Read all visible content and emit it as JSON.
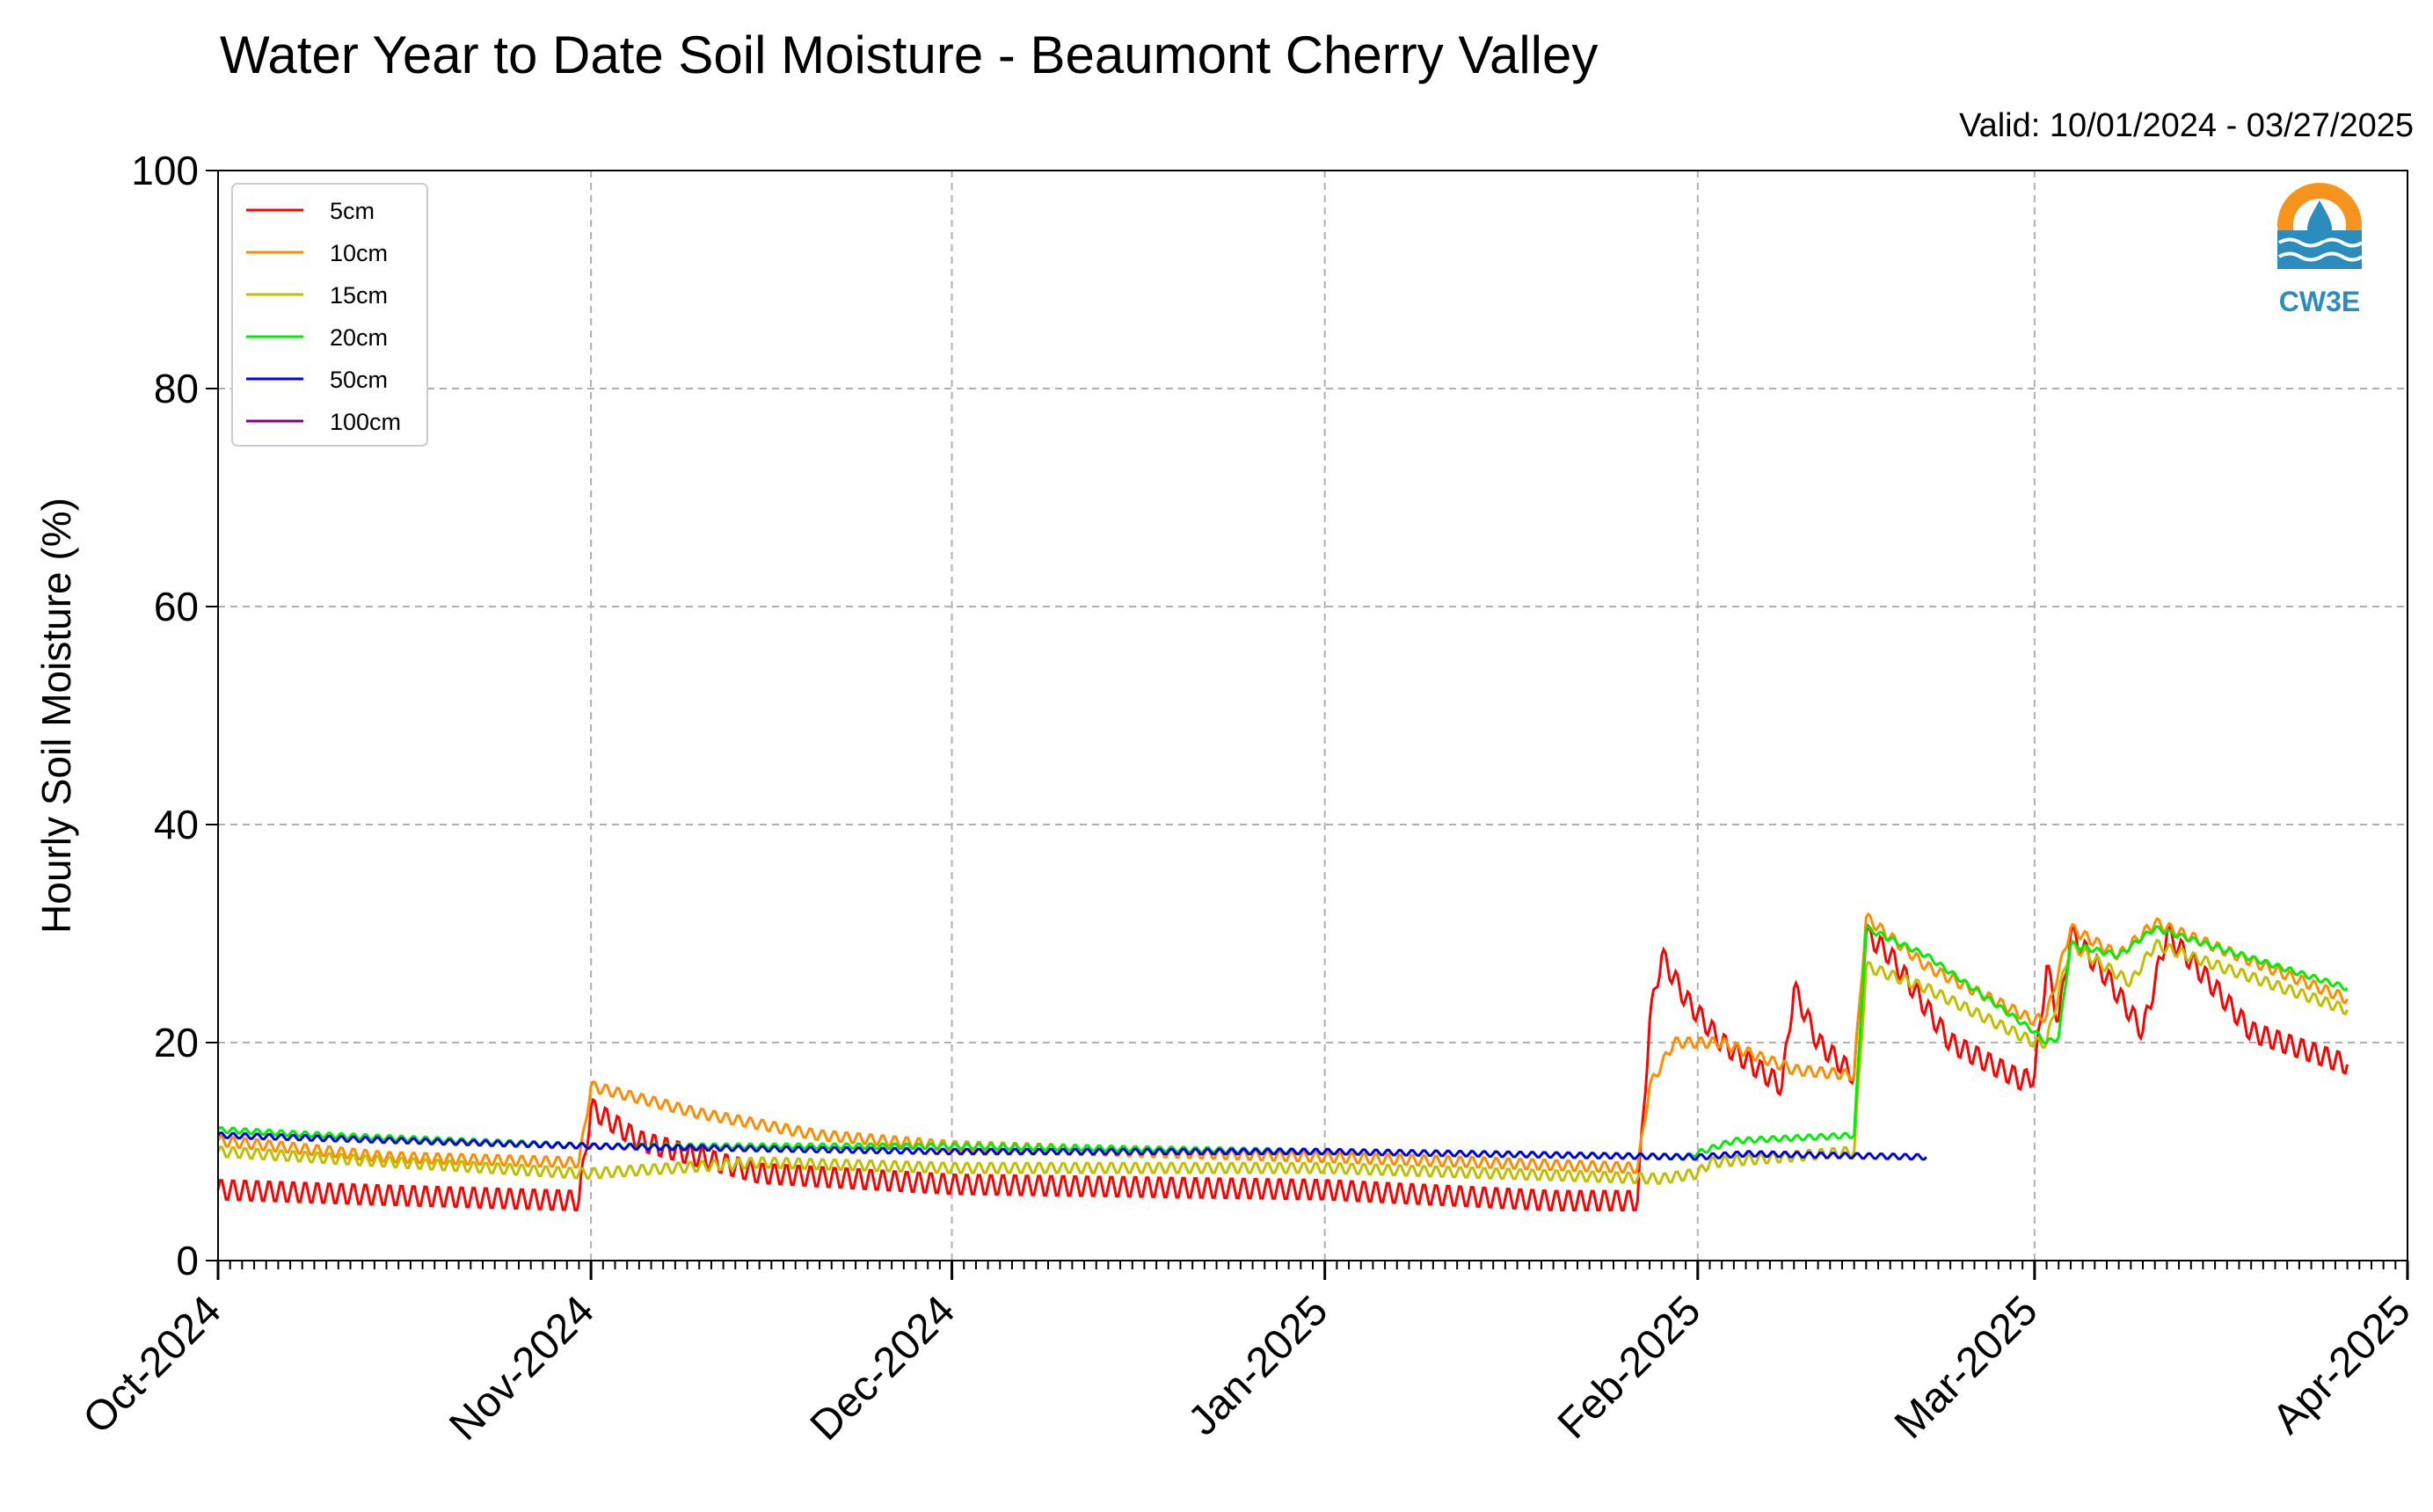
{
  "chart_data": {
    "type": "line",
    "title": "Water Year to Date Soil Moisture - Beaumont Cherry Valley",
    "subtitle": "Valid: 10/01/2024 - 03/27/2025",
    "xlabel": "",
    "ylabel": "Hourly Soil Moisture (%)",
    "ylim": [
      0,
      100
    ],
    "yticks": [
      0,
      20,
      40,
      60,
      80,
      100
    ],
    "xlim": [
      "2024-10-01",
      "2025-04-01"
    ],
    "xtick_labels": [
      "Oct-2024",
      "Nov-2024",
      "Dec-2024",
      "Jan-2025",
      "Feb-2025",
      "Mar-2025",
      "Apr-2025"
    ],
    "grid": true,
    "legend_position": "top-left",
    "logo_text": "CW3E",
    "series": [
      {
        "name": "5cm",
        "color": "#ff0000",
        "points": [
          [
            "2024-10-01",
            6.5
          ],
          [
            "2024-10-15",
            6.0
          ],
          [
            "2024-10-31",
            5.5
          ],
          [
            "2024-11-01",
            14.0
          ],
          [
            "2024-11-05",
            11.0
          ],
          [
            "2024-11-15",
            8.0
          ],
          [
            "2024-12-01",
            7.0
          ],
          [
            "2025-01-01",
            6.5
          ],
          [
            "2025-01-20",
            5.5
          ],
          [
            "2025-01-27",
            5.5
          ],
          [
            "2025-01-28",
            22.0
          ],
          [
            "2025-01-29",
            28.0
          ],
          [
            "2025-01-31",
            24.0
          ],
          [
            "2025-02-03",
            20.0
          ],
          [
            "2025-02-08",
            16.0
          ],
          [
            "2025-02-09",
            25.0
          ],
          [
            "2025-02-11",
            20.0
          ],
          [
            "2025-02-14",
            17.0
          ],
          [
            "2025-02-15",
            30.0
          ],
          [
            "2025-02-17",
            28.0
          ],
          [
            "2025-02-22",
            20.0
          ],
          [
            "2025-02-28",
            16.5
          ],
          [
            "2025-03-01",
            17.0
          ],
          [
            "2025-03-02",
            27.0
          ],
          [
            "2025-03-03",
            22.0
          ],
          [
            "2025-03-04",
            30.0
          ],
          [
            "2025-03-07",
            26.0
          ],
          [
            "2025-03-10",
            21.0
          ],
          [
            "2025-03-12",
            30.0
          ],
          [
            "2025-03-16",
            25.0
          ],
          [
            "2025-03-19",
            21.0
          ],
          [
            "2025-03-27",
            18.0
          ]
        ]
      },
      {
        "name": "10cm",
        "color": "#ff8c00",
        "points": [
          [
            "2024-10-01",
            11.0
          ],
          [
            "2024-10-15",
            9.5
          ],
          [
            "2024-10-31",
            9.0
          ],
          [
            "2024-11-01",
            16.0
          ],
          [
            "2024-11-10",
            13.5
          ],
          [
            "2024-11-20",
            11.5
          ],
          [
            "2024-12-01",
            10.5
          ],
          [
            "2025-01-01",
            9.5
          ],
          [
            "2025-01-27",
            8.5
          ],
          [
            "2025-01-28",
            16.0
          ],
          [
            "2025-01-30",
            20.0
          ],
          [
            "2025-02-03",
            20.0
          ],
          [
            "2025-02-09",
            17.5
          ],
          [
            "2025-02-14",
            17.0
          ],
          [
            "2025-02-15",
            31.5
          ],
          [
            "2025-02-20",
            27.0
          ],
          [
            "2025-03-01",
            22.0
          ],
          [
            "2025-03-02",
            22.5
          ],
          [
            "2025-03-04",
            30.5
          ],
          [
            "2025-03-08",
            28.0
          ],
          [
            "2025-03-11",
            31.0
          ],
          [
            "2025-03-27",
            24.0
          ]
        ]
      },
      {
        "name": "15cm",
        "color": "#bfbf00",
        "points": [
          [
            "2024-10-01",
            10.0
          ],
          [
            "2024-10-31",
            8.0
          ],
          [
            "2024-11-01",
            8.0
          ],
          [
            "2024-11-15",
            9.0
          ],
          [
            "2024-12-01",
            8.5
          ],
          [
            "2025-01-01",
            8.5
          ],
          [
            "2025-01-29",
            7.5
          ],
          [
            "2025-02-01",
            8.0
          ],
          [
            "2025-02-02",
            9.0
          ],
          [
            "2025-02-14",
            10.0
          ],
          [
            "2025-02-15",
            27.0
          ],
          [
            "2025-02-20",
            25.0
          ],
          [
            "2025-03-01",
            20.0
          ],
          [
            "2025-03-02",
            20.0
          ],
          [
            "2025-03-04",
            29.0
          ],
          [
            "2025-03-09",
            25.5
          ],
          [
            "2025-03-11",
            29.0
          ],
          [
            "2025-03-27",
            23.0
          ]
        ]
      },
      {
        "name": "20cm",
        "color": "#00ee00",
        "points": [
          [
            "2024-10-01",
            12.0
          ],
          [
            "2024-10-10",
            11.5
          ],
          [
            "2024-11-01",
            10.5
          ],
          [
            "2024-12-01",
            10.5
          ],
          [
            "2025-01-01",
            10.0
          ],
          [
            "2025-01-31",
            9.5
          ],
          [
            "2025-02-04",
            11.0
          ],
          [
            "2025-02-14",
            11.5
          ],
          [
            "2025-02-15",
            30.5
          ],
          [
            "2025-02-20",
            28.0
          ],
          [
            "2025-03-01",
            21.0
          ],
          [
            "2025-03-02",
            20.0
          ],
          [
            "2025-03-03",
            20.5
          ],
          [
            "2025-03-04",
            29.0
          ],
          [
            "2025-03-08",
            28.0
          ],
          [
            "2025-03-11",
            30.5
          ],
          [
            "2025-03-27",
            25.0
          ]
        ]
      },
      {
        "name": "50cm",
        "color": "#0000ee",
        "points": [
          [
            "2024-10-01",
            11.5
          ],
          [
            "2024-11-01",
            10.5
          ],
          [
            "2024-12-01",
            10.0
          ],
          [
            "2025-01-01",
            10.0
          ],
          [
            "2025-02-01",
            9.5
          ],
          [
            "2025-02-05",
            9.8
          ],
          [
            "2025-02-20",
            9.5
          ]
        ]
      },
      {
        "name": "100cm",
        "color": "#800080",
        "points": []
      }
    ]
  }
}
